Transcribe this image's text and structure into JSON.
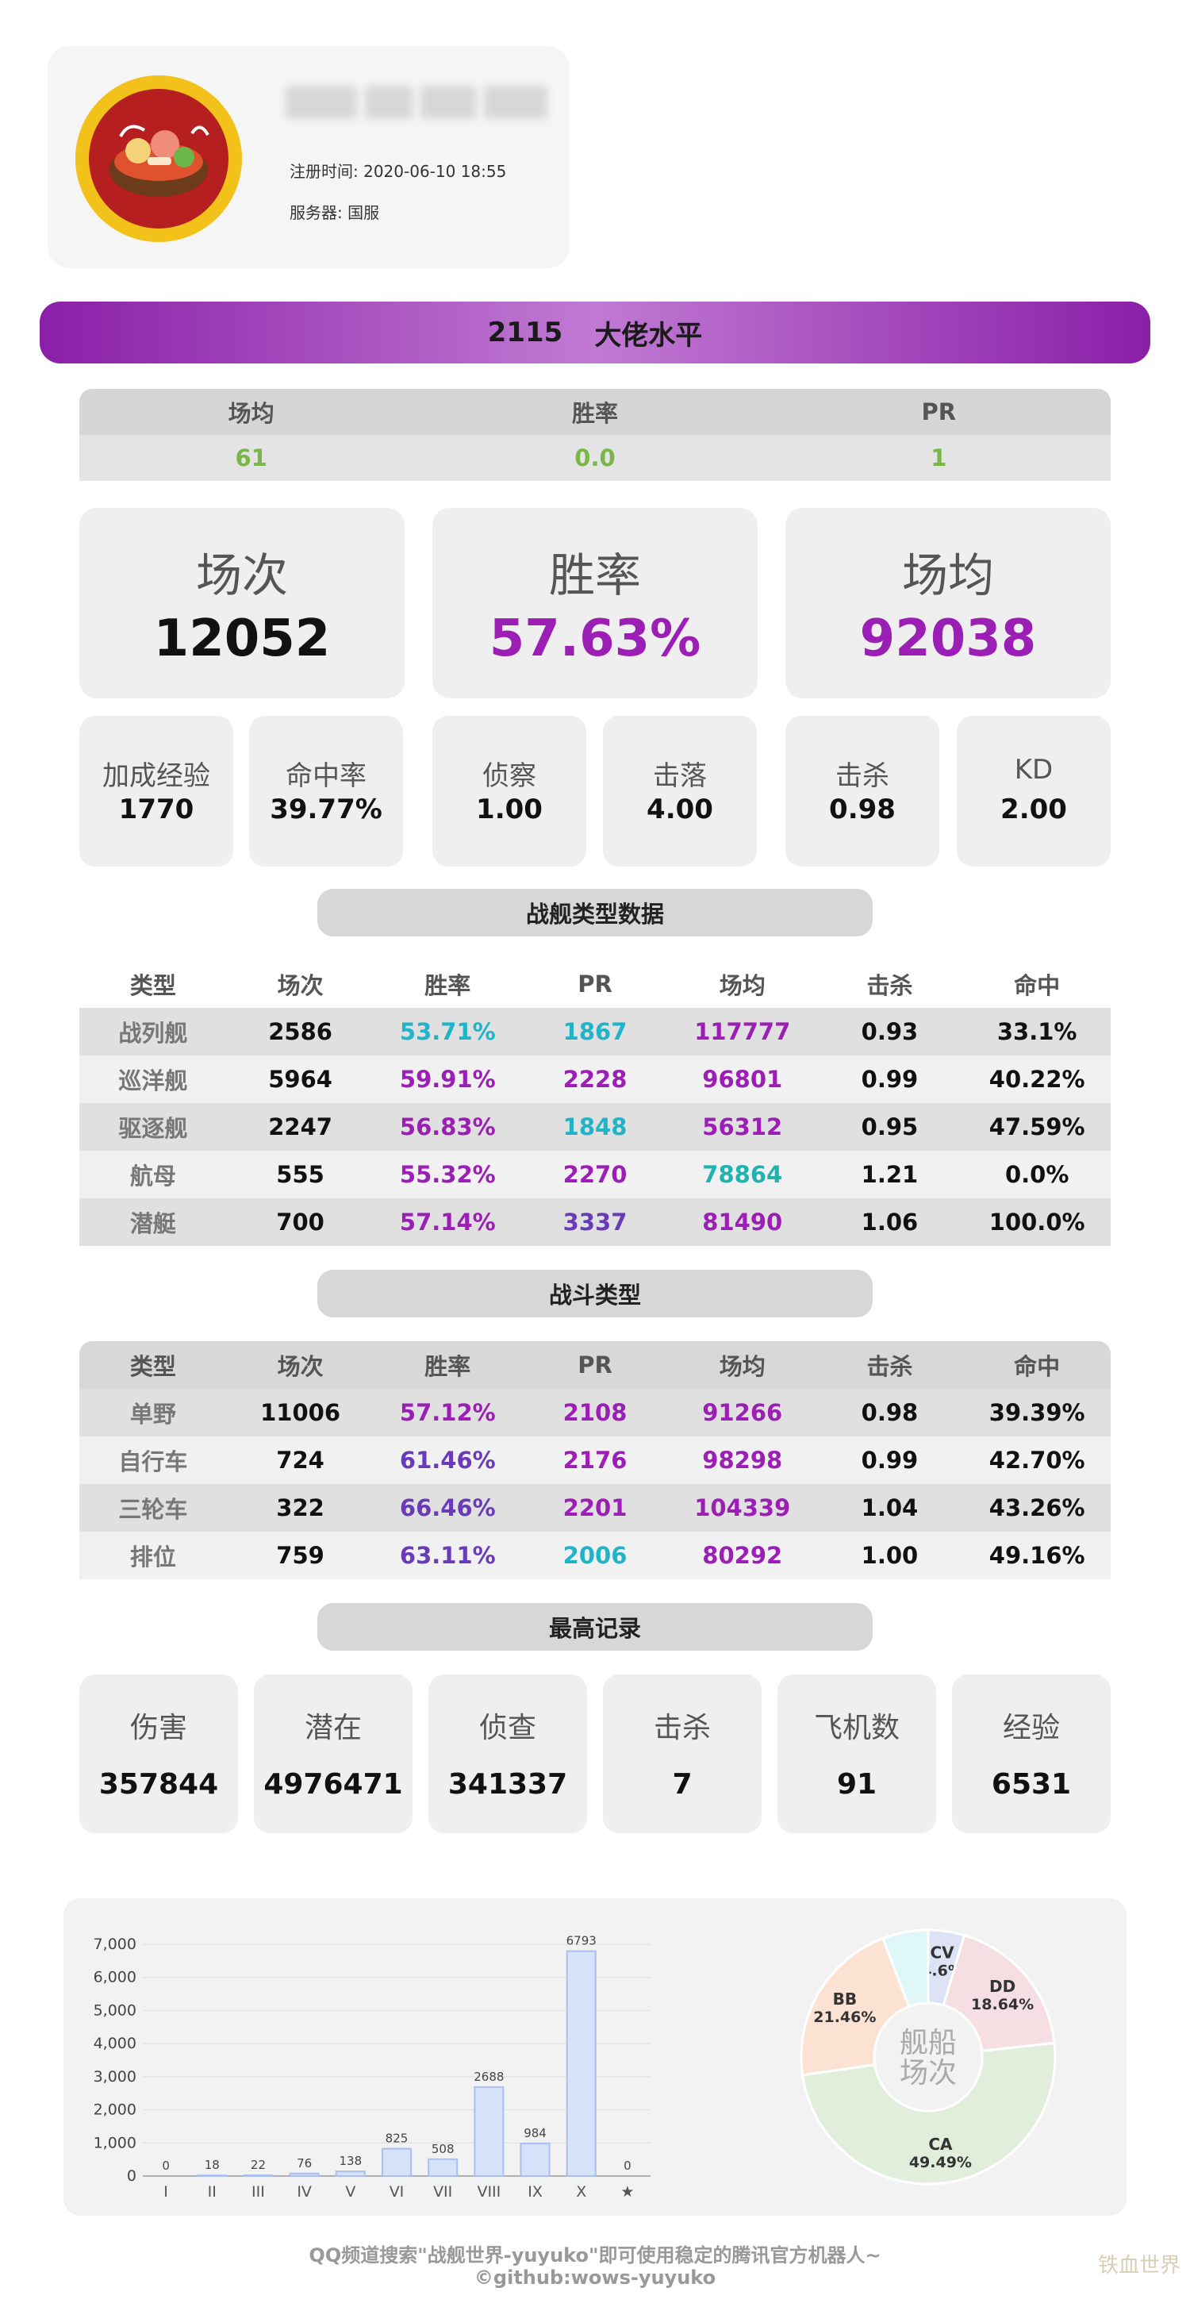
{
  "header": {
    "register_label": "注册时间:",
    "register_time": "2020-06-10 18:55",
    "server_label": "服务器:",
    "server_value": "国服"
  },
  "banner": {
    "pr": "2115",
    "level": "大佬水平"
  },
  "avg_table": {
    "headers": [
      "场均",
      "胜率",
      "PR"
    ],
    "values": [
      "61",
      "0.0",
      "1"
    ]
  },
  "big_stats": [
    {
      "label": "场次",
      "value": "12052",
      "color": "#111111"
    },
    {
      "label": "胜率",
      "value": "57.63%",
      "color": "#9b1fb5"
    },
    {
      "label": "场均",
      "value": "92038",
      "color": "#9b1fb5"
    }
  ],
  "small_stats": [
    {
      "label": "加成经验",
      "value": "1770"
    },
    {
      "label": "命中率",
      "value": "39.77%"
    },
    {
      "label": "侦察",
      "value": "1.00"
    },
    {
      "label": "击落",
      "value": "4.00"
    },
    {
      "label": "击杀",
      "value": "0.98"
    },
    {
      "label": "KD",
      "value": "2.00"
    }
  ],
  "ship_section_title": "战舰类型数据",
  "ship_table": {
    "headers": [
      "类型",
      "场次",
      "胜率",
      "PR",
      "场均",
      "击杀",
      "命中"
    ],
    "rows": [
      {
        "cells": [
          "战列舰",
          "2586",
          "53.71%",
          "1867",
          "117777",
          "0.93",
          "33.1%"
        ],
        "colors": [
          "#777777",
          "#111111",
          "#20b4c8",
          "#20b4c8",
          "#9b1fb5",
          "#111111",
          "#111111"
        ]
      },
      {
        "cells": [
          "巡洋舰",
          "5964",
          "59.91%",
          "2228",
          "96801",
          "0.99",
          "40.22%"
        ],
        "colors": [
          "#777777",
          "#111111",
          "#9b1fb5",
          "#9b1fb5",
          "#9b1fb5",
          "#111111",
          "#111111"
        ]
      },
      {
        "cells": [
          "驱逐舰",
          "2247",
          "56.83%",
          "1848",
          "56312",
          "0.95",
          "47.59%"
        ],
        "colors": [
          "#777777",
          "#111111",
          "#9b1fb5",
          "#20b4c8",
          "#9b1fb5",
          "#111111",
          "#111111"
        ]
      },
      {
        "cells": [
          "航母",
          "555",
          "55.32%",
          "2270",
          "78864",
          "1.21",
          "0.0%"
        ],
        "colors": [
          "#777777",
          "#111111",
          "#9b1fb5",
          "#9b1fb5",
          "#20b4b0",
          "#111111",
          "#111111"
        ]
      },
      {
        "cells": [
          "潜艇",
          "700",
          "57.14%",
          "3337",
          "81490",
          "1.06",
          "100.0%"
        ],
        "colors": [
          "#777777",
          "#111111",
          "#9b1fb5",
          "#6a3bb8",
          "#9b1fb5",
          "#111111",
          "#111111"
        ]
      }
    ]
  },
  "battle_section_title": "战斗类型",
  "battle_table": {
    "headers": [
      "类型",
      "场次",
      "胜率",
      "PR",
      "场均",
      "击杀",
      "命中"
    ],
    "rows": [
      {
        "cells": [
          "单野",
          "11006",
          "57.12%",
          "2108",
          "91266",
          "0.98",
          "39.39%"
        ],
        "colors": [
          "#777777",
          "#111111",
          "#9b1fb5",
          "#9b1fb5",
          "#9b1fb5",
          "#111111",
          "#111111"
        ]
      },
      {
        "cells": [
          "自行车",
          "724",
          "61.46%",
          "2176",
          "98298",
          "0.99",
          "42.70%"
        ],
        "colors": [
          "#777777",
          "#111111",
          "#6a3bb8",
          "#9b1fb5",
          "#9b1fb5",
          "#111111",
          "#111111"
        ]
      },
      {
        "cells": [
          "三轮车",
          "322",
          "66.46%",
          "2201",
          "104339",
          "1.04",
          "43.26%"
        ],
        "colors": [
          "#777777",
          "#111111",
          "#6a3bb8",
          "#9b1fb5",
          "#9b1fb5",
          "#111111",
          "#111111"
        ]
      },
      {
        "cells": [
          "排位",
          "759",
          "63.11%",
          "2006",
          "80292",
          "1.00",
          "49.16%"
        ],
        "colors": [
          "#777777",
          "#111111",
          "#6a3bb8",
          "#20b4c8",
          "#9b1fb5",
          "#111111",
          "#111111"
        ]
      }
    ]
  },
  "record_section_title": "最高记录",
  "records": [
    {
      "label": "伤害",
      "value": "357844"
    },
    {
      "label": "潜在",
      "value": "4976471"
    },
    {
      "label": "侦查",
      "value": "341337"
    },
    {
      "label": "击杀",
      "value": "7"
    },
    {
      "label": "飞机数",
      "value": "91"
    },
    {
      "label": "经验",
      "value": "6531"
    }
  ],
  "chart_data": [
    {
      "type": "bar",
      "categories": [
        "I",
        "II",
        "III",
        "IV",
        "V",
        "VI",
        "VII",
        "VIII",
        "IX",
        "X",
        "★"
      ],
      "values": [
        0,
        18,
        22,
        76,
        138,
        825,
        508,
        2688,
        984,
        6793,
        0
      ],
      "ylim": [
        0,
        7000
      ],
      "yticks": [
        "0",
        "1,000",
        "2,000",
        "3,000",
        "4,000",
        "5,000",
        "6,000",
        "7,000"
      ],
      "grid": true,
      "bar_color": "#d6e2f7",
      "bar_stroke": "#a9bff0"
    },
    {
      "type": "pie",
      "center_label": [
        "舰船",
        "场次"
      ],
      "slices": [
        {
          "name": "CV",
          "value": 4.6,
          "label": "4.6%",
          "color": "#dde3f5"
        },
        {
          "name": "DD",
          "value": 18.64,
          "label": "18.64%",
          "color": "#f5dfe2"
        },
        {
          "name": "CA",
          "value": 49.49,
          "label": "49.49%",
          "color": "#e2eedc"
        },
        {
          "name": "BB",
          "value": 21.46,
          "label": "21.46%",
          "color": "#fbe2d3"
        },
        {
          "name": "",
          "value": 5.81,
          "label": "",
          "color": "#dff7f7"
        }
      ]
    }
  ],
  "footer": {
    "line1": "QQ频道搜索\"战舰世界-yuyuko\"即可使用稳定的腾讯官方机器人~",
    "line2": "©github:wows-yuyuko"
  },
  "watermark": "铁血世界"
}
